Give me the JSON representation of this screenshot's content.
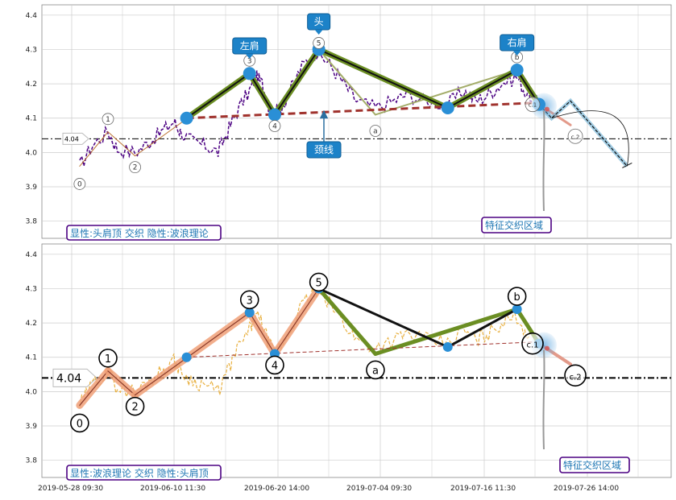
{
  "colors": {
    "price_top": "#4b0082",
    "price_bottom": "#e8b040",
    "neckline": "#a0322d",
    "wave_fill": "#f0a078",
    "pattern_green": "#6b8e23",
    "pattern_black": "#111111",
    "pivot_blue": "#2a8fd6",
    "callout_bg": "#1c82c8",
    "box_border": "#4b0082",
    "box_text": "#1f77b4",
    "ref_line": "#000000",
    "grid": "#cccccc"
  },
  "x_ticks": [
    "2019-05-28 09:30",
    "2019-06-10 11:30",
    "2019-06-20 14:00",
    "2019-07-04 09:30",
    "2019-07-16 11:30",
    "2019-07-26 14:00"
  ],
  "y_ticks": [
    "3.8",
    "3.9",
    "4.0",
    "4.1",
    "4.2",
    "4.3",
    "4.4"
  ],
  "reference_value": "4.04",
  "callouts": {
    "left_shoulder": "左肩",
    "head": "头",
    "right_shoulder": "右肩",
    "neckline": "颈线"
  },
  "top_panel": {
    "box_label": "显性:头肩顶 交织 隐性:波浪理论",
    "zone_label": "特征交织区域",
    "wave_labels": [
      "0",
      "1",
      "2",
      "3",
      "4",
      "5",
      "a",
      "b",
      "c.1",
      "c.2"
    ]
  },
  "bottom_panel": {
    "box_label": "显性:波浪理论 交织 隐性:头肩顶",
    "zone_label": "特征交织区域",
    "wave_labels": [
      "0",
      "1",
      "2",
      "3",
      "4",
      "5",
      "a",
      "b",
      "c.1",
      "c.2"
    ]
  },
  "chart_data": [
    {
      "type": "line",
      "panel": "top",
      "ylim": [
        3.75,
        4.43
      ],
      "xlim": [
        0,
        100
      ],
      "reference_line": 4.04,
      "wave_pivots": [
        {
          "label": "0",
          "x": 6,
          "y": 3.96
        },
        {
          "label": "1",
          "x": 10.5,
          "y": 4.06
        },
        {
          "label": "2",
          "x": 14.8,
          "y": 3.99
        },
        {
          "label": "3",
          "x": 33,
          "y": 4.23
        },
        {
          "label": "4",
          "x": 37,
          "y": 4.11
        },
        {
          "label": "5",
          "x": 44,
          "y": 4.3
        },
        {
          "label": "a",
          "x": 53,
          "y": 4.11
        },
        {
          "label": "b",
          "x": 75.5,
          "y": 4.24
        },
        {
          "label": "c.1",
          "x": 79,
          "y": 4.14
        },
        {
          "label": "c.2",
          "x": 84,
          "y": 4.08
        }
      ],
      "head_shoulders": [
        {
          "name": "neck_start",
          "x": 23,
          "y": 4.1
        },
        {
          "name": "left_shoulder",
          "x": 33,
          "y": 4.23
        },
        {
          "name": "neck_1",
          "x": 37,
          "y": 4.11
        },
        {
          "name": "head",
          "x": 44,
          "y": 4.3
        },
        {
          "name": "neck_2",
          "x": 64.5,
          "y": 4.13
        },
        {
          "name": "right_shoulder",
          "x": 75.5,
          "y": 4.24
        },
        {
          "name": "neck_end",
          "x": 79,
          "y": 4.14
        }
      ],
      "neckline": [
        {
          "x": 23,
          "y": 4.1
        },
        {
          "x": 79,
          "y": 4.145
        }
      ],
      "projection": [
        {
          "x": 79,
          "y": 4.14
        },
        {
          "x": 81,
          "y": 4.1
        },
        {
          "x": 84,
          "y": 4.15
        },
        {
          "x": 93,
          "y": 3.96
        }
      ]
    },
    {
      "type": "line",
      "panel": "bottom",
      "ylim": [
        3.75,
        4.43
      ],
      "xlim": [
        0,
        100
      ],
      "reference_line": 4.04,
      "wave_pivots": [
        {
          "label": "0",
          "x": 6,
          "y": 3.96
        },
        {
          "label": "1",
          "x": 10.5,
          "y": 4.06
        },
        {
          "label": "2",
          "x": 14.8,
          "y": 3.99
        },
        {
          "label": "3",
          "x": 33,
          "y": 4.23
        },
        {
          "label": "4",
          "x": 37,
          "y": 4.11
        },
        {
          "label": "5",
          "x": 44,
          "y": 4.3
        },
        {
          "label": "a",
          "x": 53,
          "y": 4.11
        },
        {
          "label": "b",
          "x": 75.5,
          "y": 4.24
        },
        {
          "label": "c.1",
          "x": 79,
          "y": 4.14
        },
        {
          "label": "c.2",
          "x": 84,
          "y": 4.08
        }
      ],
      "head_shoulders": [
        {
          "name": "neck_start",
          "x": 23,
          "y": 4.1
        },
        {
          "name": "left_shoulder",
          "x": 33,
          "y": 4.23
        },
        {
          "name": "neck_1",
          "x": 37,
          "y": 4.11
        },
        {
          "name": "head",
          "x": 44,
          "y": 4.3
        },
        {
          "name": "neck_2",
          "x": 64.5,
          "y": 4.13
        },
        {
          "name": "right_shoulder",
          "x": 75.5,
          "y": 4.24
        },
        {
          "name": "neck_end",
          "x": 79,
          "y": 4.14
        }
      ],
      "neckline": [
        {
          "x": 23,
          "y": 4.1
        },
        {
          "x": 79,
          "y": 4.145
        }
      ]
    }
  ]
}
